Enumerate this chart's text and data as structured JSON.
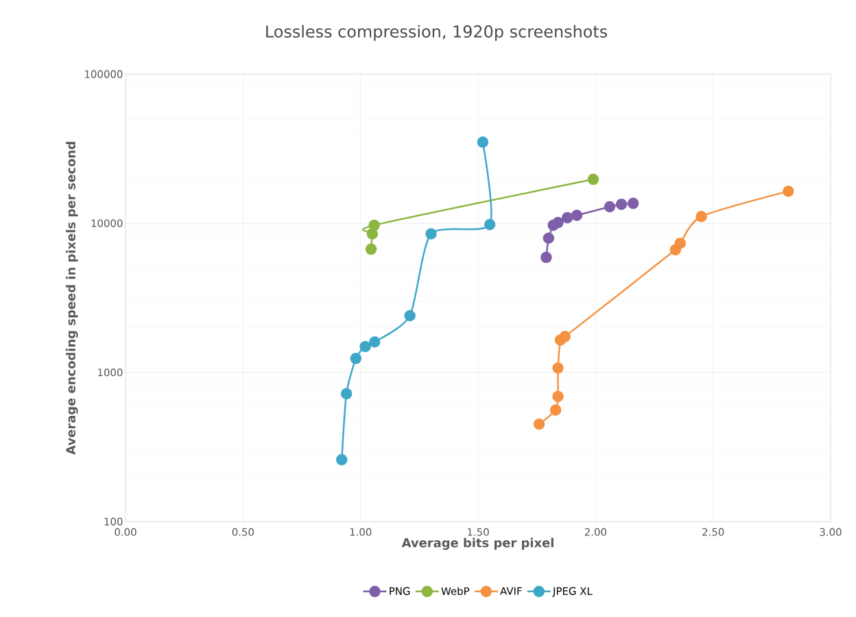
{
  "chart_data": {
    "type": "line",
    "title": "Lossless compression, 1920p screenshots",
    "xlabel": "Average bits per pixel",
    "ylabel": "Average encoding speed in pixels per second",
    "log": "y",
    "grid": true,
    "legend": "bottom",
    "marker": "circle",
    "line_style": "solid",
    "xlim": [
      0,
      3
    ],
    "ylim": [
      100,
      100000
    ],
    "xticks": [
      {
        "value": 0,
        "label": "0.00"
      },
      {
        "value": 0.5,
        "label": "0.50"
      },
      {
        "value": 1,
        "label": "1.00"
      },
      {
        "value": 1.5,
        "label": "1.50"
      },
      {
        "value": 2,
        "label": "2.00"
      },
      {
        "value": 2.5,
        "label": "2.50"
      },
      {
        "value": 3,
        "label": "3.00"
      }
    ],
    "yticks": [
      100,
      1000,
      10000,
      100000
    ],
    "series": [
      {
        "name": "PNG",
        "color": "#7f5fa8",
        "x": [
          1.79,
          1.8,
          1.82,
          1.84,
          1.88,
          1.92,
          2.06,
          2.11,
          2.16
        ],
        "values": [
          5900,
          7950,
          9700,
          10100,
          10900,
          11300,
          12900,
          13400,
          13600
        ]
      },
      {
        "name": "WebP",
        "color": "#8cb640",
        "x": [
          1.045,
          1.05,
          1.058,
          1.99
        ],
        "values": [
          6700,
          8500,
          9700,
          19700
        ]
      },
      {
        "name": "AVIF",
        "color": "#f59241",
        "x": [
          1.76,
          1.83,
          1.84,
          1.84,
          1.85,
          1.87,
          2.34,
          2.36,
          2.45,
          2.82
        ],
        "values": [
          450,
          560,
          690,
          1070,
          1650,
          1740,
          6650,
          7350,
          11100,
          16400
        ]
      },
      {
        "name": "JPEG XL",
        "color": "#3ea7c8",
        "x": [
          0.92,
          0.94,
          0.98,
          1.02,
          1.06,
          1.21,
          1.3,
          1.55,
          1.52
        ],
        "values": [
          260,
          720,
          1240,
          1490,
          1600,
          2400,
          8500,
          9800,
          35000
        ]
      }
    ]
  }
}
